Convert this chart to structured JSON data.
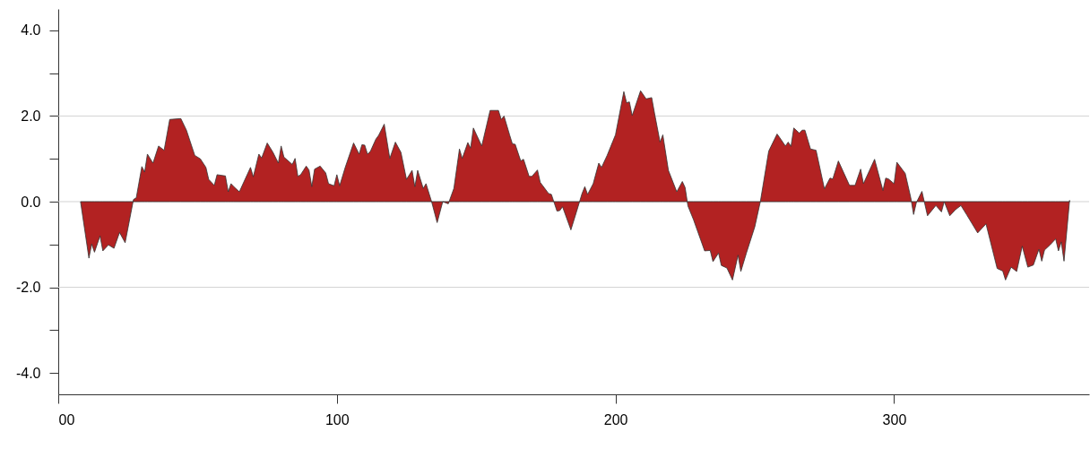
{
  "chart_data": {
    "type": "area",
    "xlim": [
      0,
      370
    ],
    "xticks": [
      {
        "value": 0,
        "label": "00"
      },
      100,
      200,
      300
    ],
    "ylim": [
      -4.5,
      4.5
    ],
    "yticks": [
      {
        "value": -4,
        "label": "-4.0"
      },
      {
        "value": -3,
        "label": null
      },
      {
        "value": -2,
        "label": "-2.0"
      },
      {
        "value": -1,
        "label": null
      },
      {
        "value": 0,
        "label": "0.0"
      },
      {
        "value": 1,
        "label": null
      },
      {
        "value": 2,
        "label": "2.0"
      },
      {
        "value": 3,
        "label": null
      },
      {
        "value": 4,
        "label": "4.0"
      }
    ],
    "ref_lines": [
      {
        "axis": "y",
        "value": 2,
        "label": null,
        "color": "#d3d3d3"
      },
      {
        "axis": "y",
        "value": 0,
        "label": null,
        "color": "#d3d3d3"
      },
      {
        "axis": "y",
        "value": -2,
        "label": null,
        "color": "#d3d3d3"
      }
    ],
    "x": [
      8,
      11,
      12,
      13,
      15,
      16,
      18,
      20,
      22,
      24,
      27,
      28,
      30,
      31,
      32,
      34,
      36,
      38,
      40,
      44,
      46,
      49,
      51,
      53,
      54,
      56,
      57,
      60,
      61,
      62,
      63,
      65,
      69,
      70,
      72,
      73,
      75,
      77,
      79,
      80,
      81,
      84,
      85,
      86,
      87,
      89,
      90,
      91,
      92,
      94,
      96,
      97,
      99,
      100,
      101,
      103,
      106,
      108,
      109,
      110,
      111,
      112,
      114,
      115,
      117,
      119,
      121,
      123,
      125,
      127,
      128,
      129,
      131,
      132,
      134,
      136,
      138,
      140,
      142,
      144,
      145,
      147,
      148,
      149,
      152,
      155,
      158,
      159,
      160,
      162,
      163,
      164,
      166,
      167,
      169,
      170,
      172,
      173,
      176,
      177,
      179,
      180,
      181,
      184,
      186,
      188,
      189,
      190,
      192,
      194,
      195,
      197,
      199,
      200,
      203,
      204,
      205,
      206,
      209,
      211,
      213,
      214,
      216,
      217,
      219,
      222,
      224,
      225,
      226,
      228,
      232,
      234,
      235,
      237,
      238,
      240,
      242,
      244,
      245,
      247,
      250,
      252,
      255,
      258,
      259,
      261,
      262,
      263,
      264,
      266,
      267,
      268,
      270,
      272,
      275,
      277,
      278,
      280,
      284,
      286,
      288,
      289,
      293,
      296,
      297,
      298,
      300,
      301,
      304,
      306,
      307,
      308,
      310,
      312,
      315,
      317,
      318,
      320,
      322,
      324,
      326,
      330,
      333,
      337,
      339,
      340,
      342,
      344,
      346,
      348,
      350,
      352,
      353,
      354,
      356,
      358,
      359,
      360,
      361,
      363
    ],
    "series": [
      {
        "color": "#b22222",
        "values": [
          0,
          -1.32,
          -0.99,
          -1.18,
          -0.8,
          -1.15,
          -1.01,
          -1.09,
          -0.72,
          -0.96,
          0.05,
          0.09,
          0.82,
          0.69,
          1.11,
          0.9,
          1.3,
          1.2,
          1.92,
          1.94,
          1.67,
          1.08,
          1.0,
          0.8,
          0.52,
          0.38,
          0.63,
          0.6,
          0.23,
          0.42,
          0.35,
          0.23,
          0.8,
          0.58,
          1.11,
          1.02,
          1.37,
          1.16,
          0.9,
          1.3,
          1.04,
          0.87,
          1.01,
          0.59,
          0.63,
          0.83,
          0.74,
          0.35,
          0.76,
          0.83,
          0.67,
          0.42,
          0.37,
          0.63,
          0.37,
          0.8,
          1.37,
          1.11,
          1.33,
          1.32,
          1.11,
          1.17,
          1.46,
          1.55,
          1.81,
          1.01,
          1.39,
          1.15,
          0.52,
          0.73,
          0.35,
          0.73,
          0.31,
          0.42,
          0,
          -0.49,
          0,
          -0.05,
          0.31,
          1.23,
          1.01,
          1.38,
          1.25,
          1.72,
          1.3,
          2.13,
          2.13,
          1.92,
          2.0,
          1.56,
          1.35,
          1.34,
          0.95,
          0.99,
          0.59,
          0.59,
          0.74,
          0.45,
          0.19,
          0.17,
          -0.22,
          -0.21,
          -0.12,
          -0.66,
          -0.24,
          0.19,
          0.35,
          0.17,
          0.42,
          0.9,
          0.8,
          1.08,
          1.4,
          1.56,
          2.57,
          2.31,
          2.33,
          2.01,
          2.59,
          2.4,
          2.43,
          2.07,
          1.39,
          1.56,
          0.73,
          0.23,
          0.47,
          0.33,
          -0.1,
          -0.42,
          -1.15,
          -1.14,
          -1.4,
          -1.2,
          -1.49,
          -1.55,
          -1.83,
          -1.25,
          -1.63,
          -1.2,
          -0.59,
          0,
          1.18,
          1.58,
          1.49,
          1.3,
          1.39,
          1.29,
          1.72,
          1.6,
          1.67,
          1.67,
          1.23,
          1.2,
          0.3,
          0.55,
          0.53,
          0.95,
          0.38,
          0.38,
          0.76,
          0.42,
          0.99,
          0.26,
          0.55,
          0.53,
          0.42,
          0.92,
          0.66,
          0.09,
          -0.3,
          -0.02,
          0.24,
          -0.33,
          -0.09,
          -0.24,
          0,
          -0.33,
          -0.19,
          -0.09,
          -0.3,
          -0.73,
          -0.52,
          -1.56,
          -1.62,
          -1.83,
          -1.53,
          -1.63,
          -1.04,
          -1.53,
          -1.48,
          -1.11,
          -1.39,
          -1.13,
          -1.01,
          -0.87,
          -1.15,
          -0.94,
          -1.39,
          0.03
        ]
      }
    ]
  }
}
